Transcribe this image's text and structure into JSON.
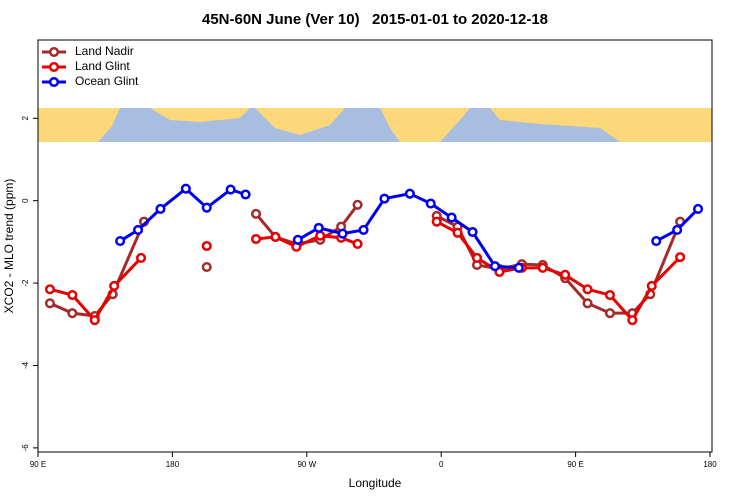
{
  "chart_data": {
    "type": "line",
    "title": "45N-60N June (Ver 10)   2015-01-01 to 2020-12-18",
    "x_label": "Longitude",
    "y_label": "XCO2 - MLO trend (ppm)",
    "xlim": [
      90,
      540
    ],
    "xticks": [
      {
        "value": 90,
        "label": "90 E"
      },
      180,
      {
        "value": 270,
        "label": "90 W"
      },
      {
        "value": 360,
        "label": "0"
      },
      {
        "value": 450,
        "label": "90 E"
      },
      {
        "value": 540,
        "label": "180"
      }
    ],
    "ylim": [
      -6.1,
      3.9
    ],
    "yticks": [
      -6,
      -4,
      -2,
      0,
      2
    ],
    "legend": "top-left",
    "series": [
      {
        "name": "Land Nadir",
        "color": "#a52a2a",
        "x": [
          98,
          113,
          128,
          140,
          161,
          null,
          203,
          null,
          236,
          249,
          263,
          279,
          293,
          304,
          null,
          357,
          371,
          384,
          399,
          414,
          428,
          443,
          458,
          473,
          488,
          500,
          520
        ],
        "values": [
          -2.49,
          -2.73,
          -2.8,
          -2.27,
          -0.51,
          null,
          -1.61,
          null,
          -0.32,
          -0.88,
          -1.05,
          -0.95,
          -0.63,
          -0.1,
          null,
          -0.37,
          -0.63,
          -1.56,
          -1.66,
          -1.54,
          -1.56,
          -1.88,
          -2.49,
          -2.73,
          -2.73,
          -2.27,
          -0.51
        ]
      },
      {
        "name": "Land Glint",
        "color": "#e60000",
        "x": [
          98,
          113,
          128,
          141,
          159,
          null,
          203,
          null,
          236,
          249,
          263,
          279,
          293,
          304,
          null,
          357,
          371,
          384,
          399,
          414,
          428,
          443,
          458,
          473,
          488,
          501,
          520
        ],
        "values": [
          -2.15,
          -2.29,
          -2.9,
          -2.07,
          -1.39,
          null,
          -1.1,
          null,
          -0.93,
          -0.88,
          -1.12,
          -0.85,
          -0.9,
          -1.05,
          null,
          -0.51,
          -0.78,
          -1.39,
          -1.73,
          -1.63,
          -1.63,
          -1.8,
          -2.15,
          -2.29,
          -2.9,
          -2.07,
          -1.37
        ]
      },
      {
        "name": "Ocean Glint",
        "color": "#0000ee",
        "x": [
          145,
          157,
          172,
          189,
          203,
          219,
          229,
          null,
          264,
          278,
          294,
          308,
          322,
          339,
          353,
          367,
          381,
          396,
          412,
          null,
          504,
          518,
          532
        ],
        "values": [
          -0.98,
          -0.71,
          -0.2,
          0.29,
          -0.17,
          0.27,
          0.15,
          null,
          -0.95,
          -0.66,
          -0.8,
          -0.71,
          0.05,
          0.17,
          -0.07,
          -0.41,
          -0.76,
          -1.59,
          -1.63,
          null,
          -0.98,
          -0.71,
          -0.2
        ]
      }
    ]
  }
}
